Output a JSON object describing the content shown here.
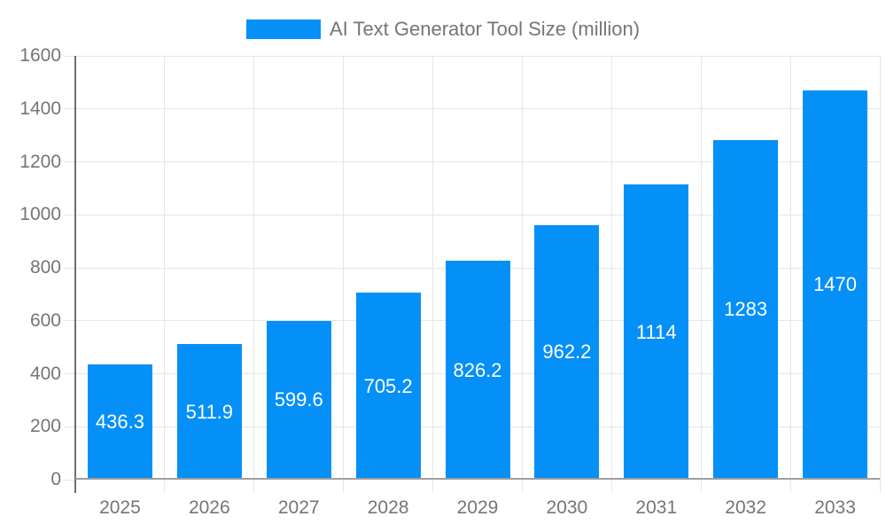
{
  "legend": {
    "label": "AI Text Generator Tool Size (million)"
  },
  "chart_data": {
    "type": "bar",
    "title": "AI Text Generator Tool Size (million)",
    "categories": [
      "2025",
      "2026",
      "2027",
      "2028",
      "2029",
      "2030",
      "2031",
      "2032",
      "2033"
    ],
    "values": [
      436.3,
      511.9,
      599.6,
      705.2,
      826.2,
      962.2,
      1114,
      1283,
      1470
    ],
    "value_labels": [
      "436.3",
      "511.9",
      "599.6",
      "705.2",
      "826.2",
      "962.2",
      "1114",
      "1283",
      "1470"
    ],
    "xlabel": "",
    "ylabel": "",
    "ylim": [
      0,
      1600
    ],
    "ytick_step": 200,
    "ytick_labels": [
      "0",
      "200",
      "400",
      "600",
      "800",
      "1000",
      "1200",
      "1400",
      "1600"
    ],
    "grid": true,
    "legend_position": "top",
    "colors": {
      "bar": "#0590f8",
      "grid": "#e6e6e6",
      "axis_line": "#6f6f6f",
      "baseline": "#9e9e9e",
      "axis_text": "#757575",
      "bar_label_text": "#ffffff",
      "background": "#ffffff"
    }
  }
}
